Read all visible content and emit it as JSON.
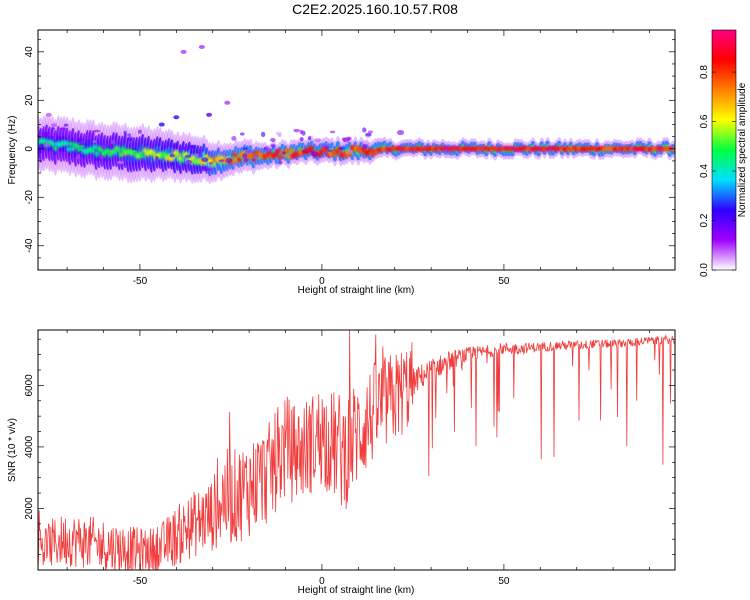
{
  "title": "C2E2.2025.160.10.57.R08",
  "chart_data": [
    {
      "type": "heatmap",
      "xlabel": "Height of straight line (km)",
      "ylabel": "Frequency (Hz)",
      "xlim": [
        -78,
        97
      ],
      "ylim": [
        -50,
        49
      ],
      "x_ticks": [
        -50,
        0,
        50
      ],
      "y_ticks": [
        -40,
        -20,
        0,
        20,
        40
      ],
      "colorbar": {
        "label": "Normalized spectral amplitude",
        "range": [
          0.0,
          0.97
        ],
        "ticks": [
          "0.0",
          "0.2",
          "0.4",
          "0.6",
          "0.8"
        ],
        "colors": [
          "#ffffff",
          "#a000ff",
          "#3000ff",
          "#00e0ff",
          "#00ff40",
          "#ffff00",
          "#ff8000",
          "#ff0000",
          "#ff0080"
        ]
      },
      "ridge": {
        "description": "dominant Doppler frequency trace",
        "x": [
          -78,
          -70,
          -60,
          -50,
          -40,
          -35,
          -30,
          -25,
          -20,
          -15,
          -10,
          -5,
          0,
          10,
          20,
          30,
          50,
          70,
          97
        ],
        "y": [
          2,
          1,
          -1,
          -2,
          -3,
          -4,
          -5,
          -4,
          -3,
          -3,
          -2,
          -1,
          -1,
          -1,
          0,
          0,
          0,
          0,
          0
        ],
        "amplitude": [
          0.45,
          0.45,
          0.5,
          0.55,
          0.6,
          0.6,
          0.75,
          0.8,
          0.8,
          0.85,
          0.85,
          0.85,
          0.85,
          0.85,
          0.9,
          0.9,
          0.9,
          0.9,
          0.9
        ],
        "spread_hz": [
          6,
          6,
          6,
          6,
          5,
          5,
          4,
          3,
          3,
          2,
          2,
          2,
          2,
          2,
          1,
          1,
          1,
          1,
          1
        ]
      },
      "outliers": [
        {
          "x": -38,
          "y": 40,
          "amplitude": 0.1
        },
        {
          "x": -33,
          "y": 42,
          "amplitude": 0.1
        },
        {
          "x": -40,
          "y": 13,
          "amplitude": 0.25
        },
        {
          "x": -44,
          "y": 10,
          "amplitude": 0.25
        },
        {
          "x": -31,
          "y": 14,
          "amplitude": 0.2
        },
        {
          "x": -26,
          "y": 19,
          "amplitude": 0.1
        },
        {
          "x": -75,
          "y": 14,
          "amplitude": 0.08
        }
      ]
    },
    {
      "type": "line",
      "xlabel": "Height of straight line (km)",
      "ylabel": "SNR (10 * v/v)",
      "xlim": [
        -78,
        97
      ],
      "ylim": [
        0,
        7800
      ],
      "x_ticks": [
        -50,
        0,
        50
      ],
      "y_ticks": [
        2000,
        4000,
        6000
      ],
      "color": "#f03c3c",
      "series": [
        {
          "x": [
            -78,
            -70,
            -60,
            -50,
            -45,
            -40,
            -35,
            -30,
            -27,
            -25,
            -20,
            -15,
            -12,
            -10,
            -8,
            -5,
            -2,
            0,
            3,
            6,
            10,
            15,
            20,
            25,
            30,
            35,
            40,
            45,
            50,
            55,
            60,
            65,
            70,
            75,
            80,
            85,
            90,
            97
          ],
          "y": [
            700,
            1000,
            800,
            600,
            650,
            1100,
            1500,
            1800,
            2400,
            2300,
            2700,
            3100,
            3600,
            4000,
            3800,
            3900,
            4200,
            4400,
            4100,
            3800,
            4500,
            5200,
            5600,
            6100,
            6500,
            6800,
            7000,
            7100,
            7200,
            7200,
            7250,
            7300,
            7300,
            7350,
            7350,
            7400,
            7450,
            7500
          ],
          "noise_amplitude": [
            700,
            800,
            800,
            700,
            700,
            900,
            1000,
            1100,
            1500,
            1400,
            1500,
            1500,
            1500,
            1600,
            1500,
            1500,
            1500,
            1600,
            1600,
            1800,
            1600,
            1500,
            1400,
            1300,
            1100,
            900,
            700,
            600,
            550,
            500,
            450,
            450,
            450,
            400,
            400,
            400,
            400,
            400
          ]
        }
      ]
    }
  ]
}
